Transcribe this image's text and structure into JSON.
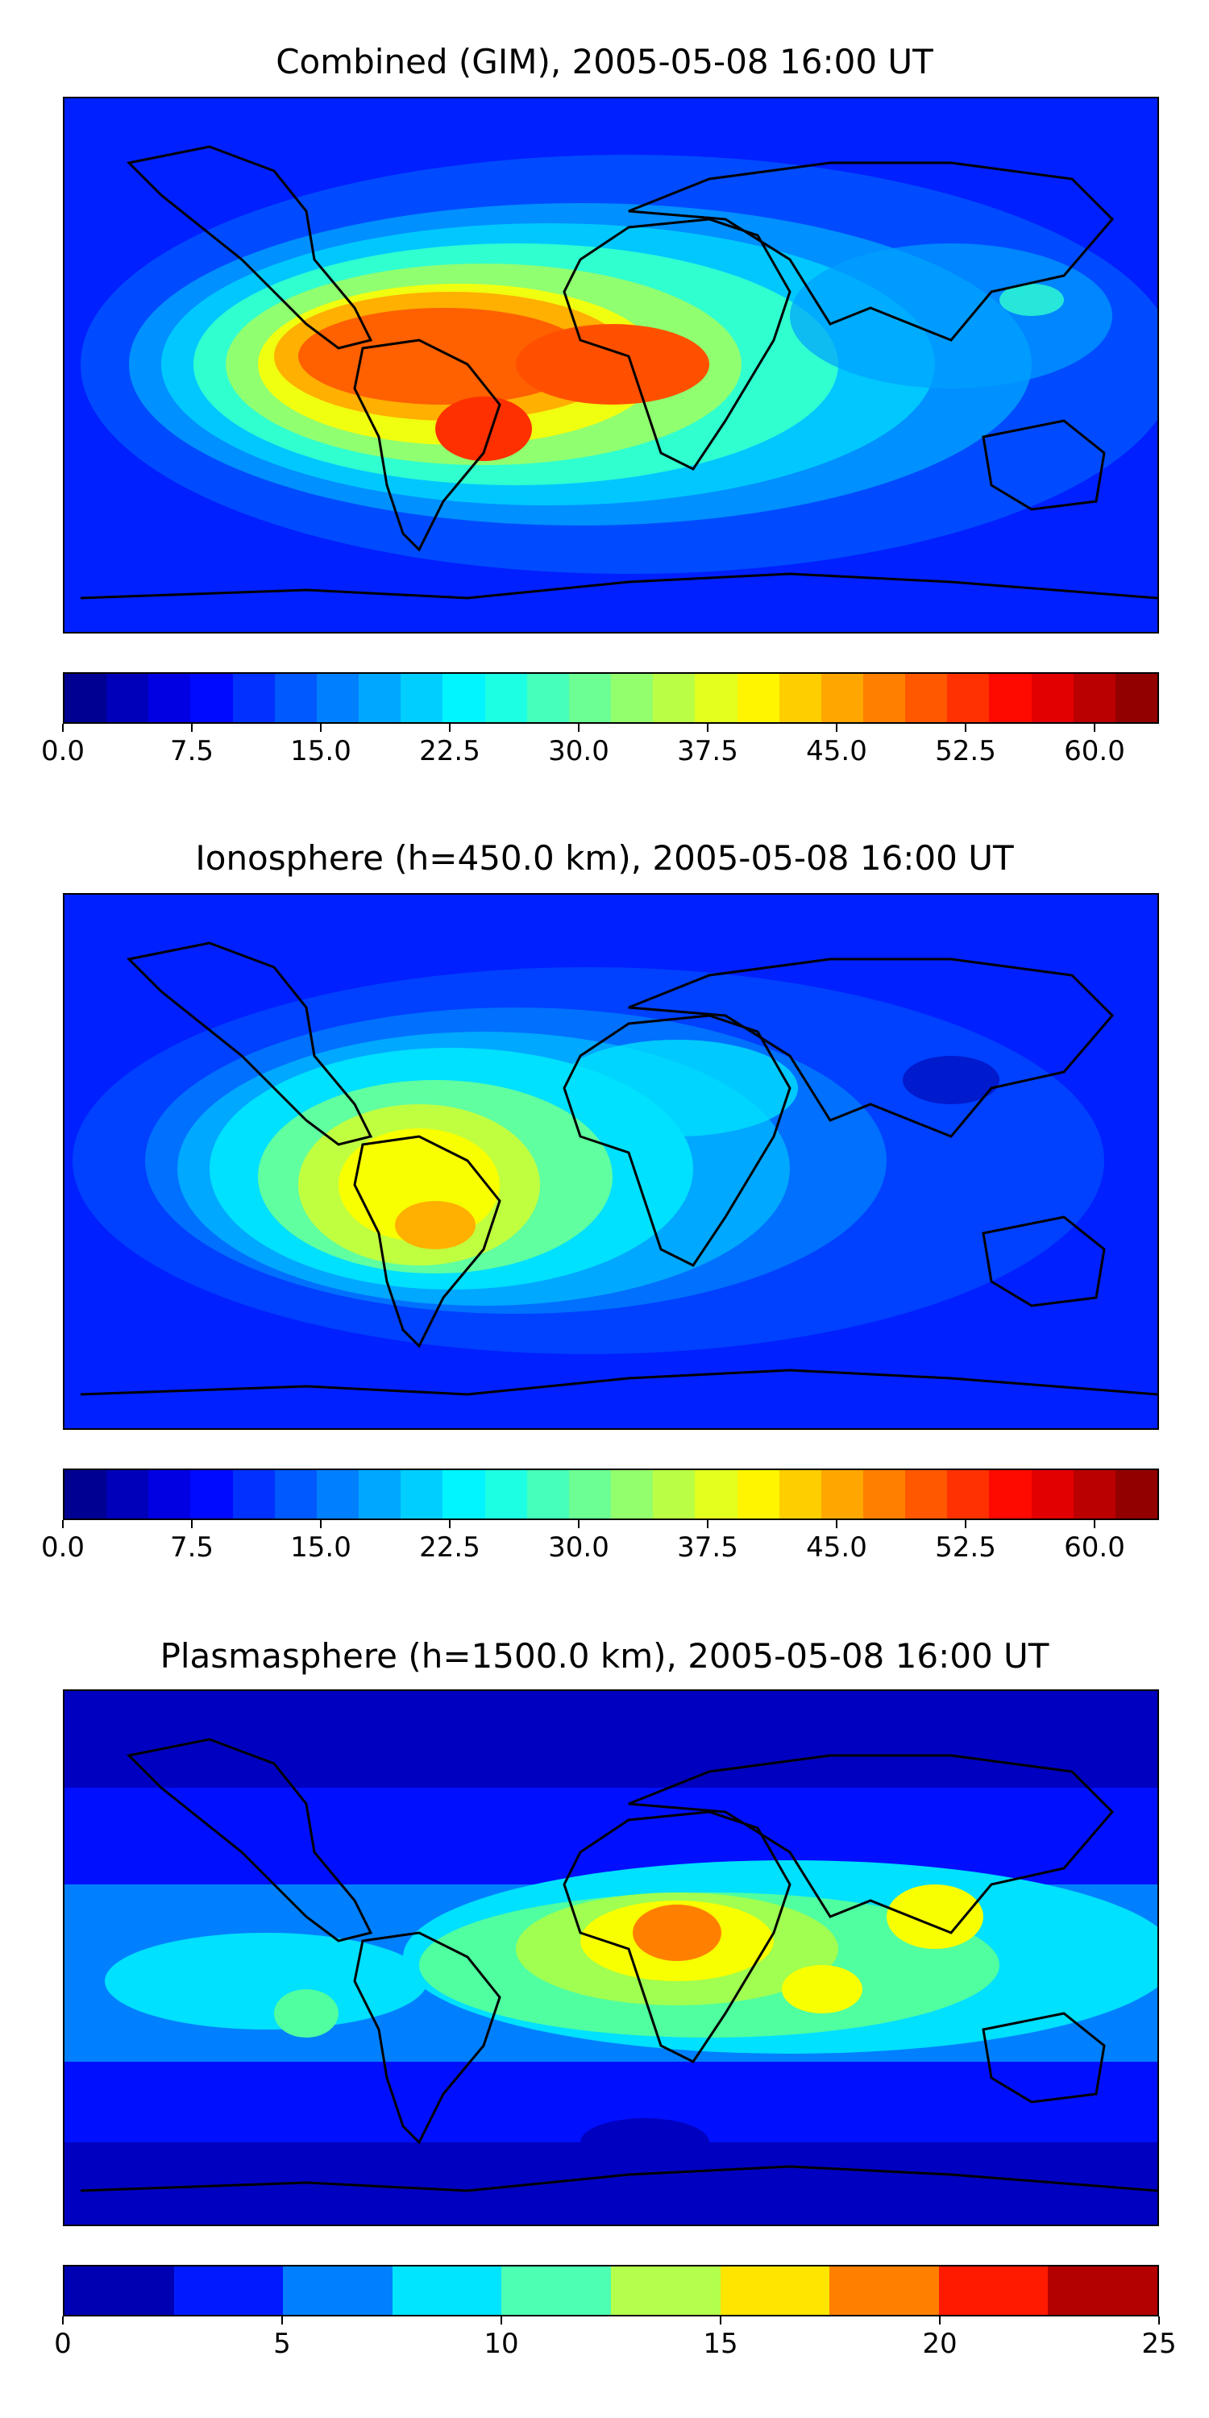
{
  "panels": [
    {
      "title": "Combined (GIM), 2005-05-08 16:00 UT",
      "colorbar": {
        "min": 0,
        "max": 63.75,
        "levels": 26,
        "tick_labels": [
          "0.0",
          "7.5",
          "15.0",
          "22.5",
          "30.0",
          "37.5",
          "45.0",
          "52.5",
          "60.0"
        ]
      }
    },
    {
      "title": "Ionosphere  (h=450.0 km), 2005-05-08 16:00 UT",
      "colorbar": {
        "min": 0,
        "max": 63.75,
        "levels": 26,
        "tick_labels": [
          "0.0",
          "7.5",
          "15.0",
          "22.5",
          "30.0",
          "37.5",
          "45.0",
          "52.5",
          "60.0"
        ]
      }
    },
    {
      "title": "Plasmasphere (h=1500.0 km), 2005-05-08 16:00 UT",
      "colorbar": {
        "min": 0,
        "max": 25,
        "levels": 10,
        "tick_labels": [
          "0",
          "5",
          "10",
          "15",
          "20",
          "25"
        ]
      }
    }
  ],
  "colormap": "jet"
}
